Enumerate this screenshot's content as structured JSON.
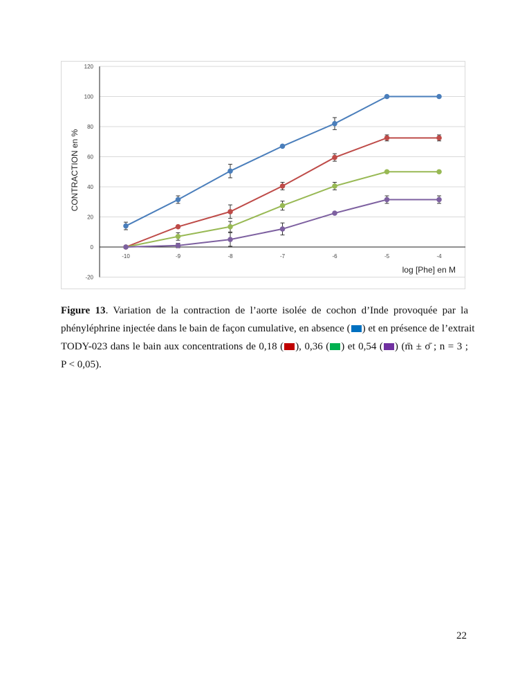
{
  "chart_data": {
    "type": "line",
    "title": "",
    "xlabel": "log  [Phe] en M",
    "ylabel": "CONTRACTION en %",
    "x": [
      -10,
      -9,
      -8,
      -7,
      -6,
      -5,
      -4
    ],
    "x_tick_labels": [
      "-10",
      "-9",
      "-8",
      "-7",
      "-6",
      "-5",
      "-4"
    ],
    "ylim": [
      -20,
      120
    ],
    "y_tick_labels": [
      "-20",
      "0",
      "20",
      "40",
      "60",
      "80",
      "100",
      "120"
    ],
    "y_ticks": [
      -20,
      0,
      20,
      40,
      60,
      80,
      100,
      120
    ],
    "grid": true,
    "legend": "none",
    "series": [
      {
        "name": "absence",
        "color": "#4a7ebb",
        "values": [
          14,
          31.5,
          50.5,
          67,
          82,
          100,
          100
        ],
        "errors": [
          2.5,
          2.5,
          4.5,
          0,
          4,
          0,
          0
        ]
      },
      {
        "name": "0,18",
        "color": "#be4b48",
        "values": [
          0,
          13.5,
          23.5,
          40.5,
          59.5,
          72.5,
          72.5
        ],
        "errors": [
          0,
          0,
          4.5,
          2.5,
          2.5,
          2,
          2
        ]
      },
      {
        "name": "0,36",
        "color": "#98b954",
        "values": [
          0,
          7,
          13.5,
          27.5,
          40.5,
          50,
          50
        ],
        "errors": [
          0,
          2.5,
          3.5,
          3,
          2.5,
          0,
          0
        ]
      },
      {
        "name": "0,54",
        "color": "#7d60a0",
        "values": [
          0,
          1,
          5,
          12,
          22.5,
          31.5,
          31.5
        ],
        "errors": [
          0,
          1.5,
          4.5,
          4,
          0,
          2.5,
          2.5
        ]
      }
    ]
  },
  "caption": {
    "label": "Figure 13",
    "l1": ". Variation de la contraction de l’aorte isolée de cochon d’Inde provoquée par la",
    "l2a": "phényléphrine injectée  dans le bain de façon cumulative, en absence (",
    "l2b": ") et en présence de l’extrait",
    "l3a": "TODY-023 dans le bain aux concentrations de 0,18 (",
    "l3b": "), 0,36 (",
    "l3c": ") et 0,54 (",
    "l3d": ") (m̄ ± σ̄ ; n = 3 ;",
    "l4": "P < 0,05).",
    "swatch_colors": {
      "absence": "#0070c0",
      "c018": "#c00000",
      "c036": "#00b050",
      "c054": "#7030a0"
    }
  },
  "page_number": "22"
}
